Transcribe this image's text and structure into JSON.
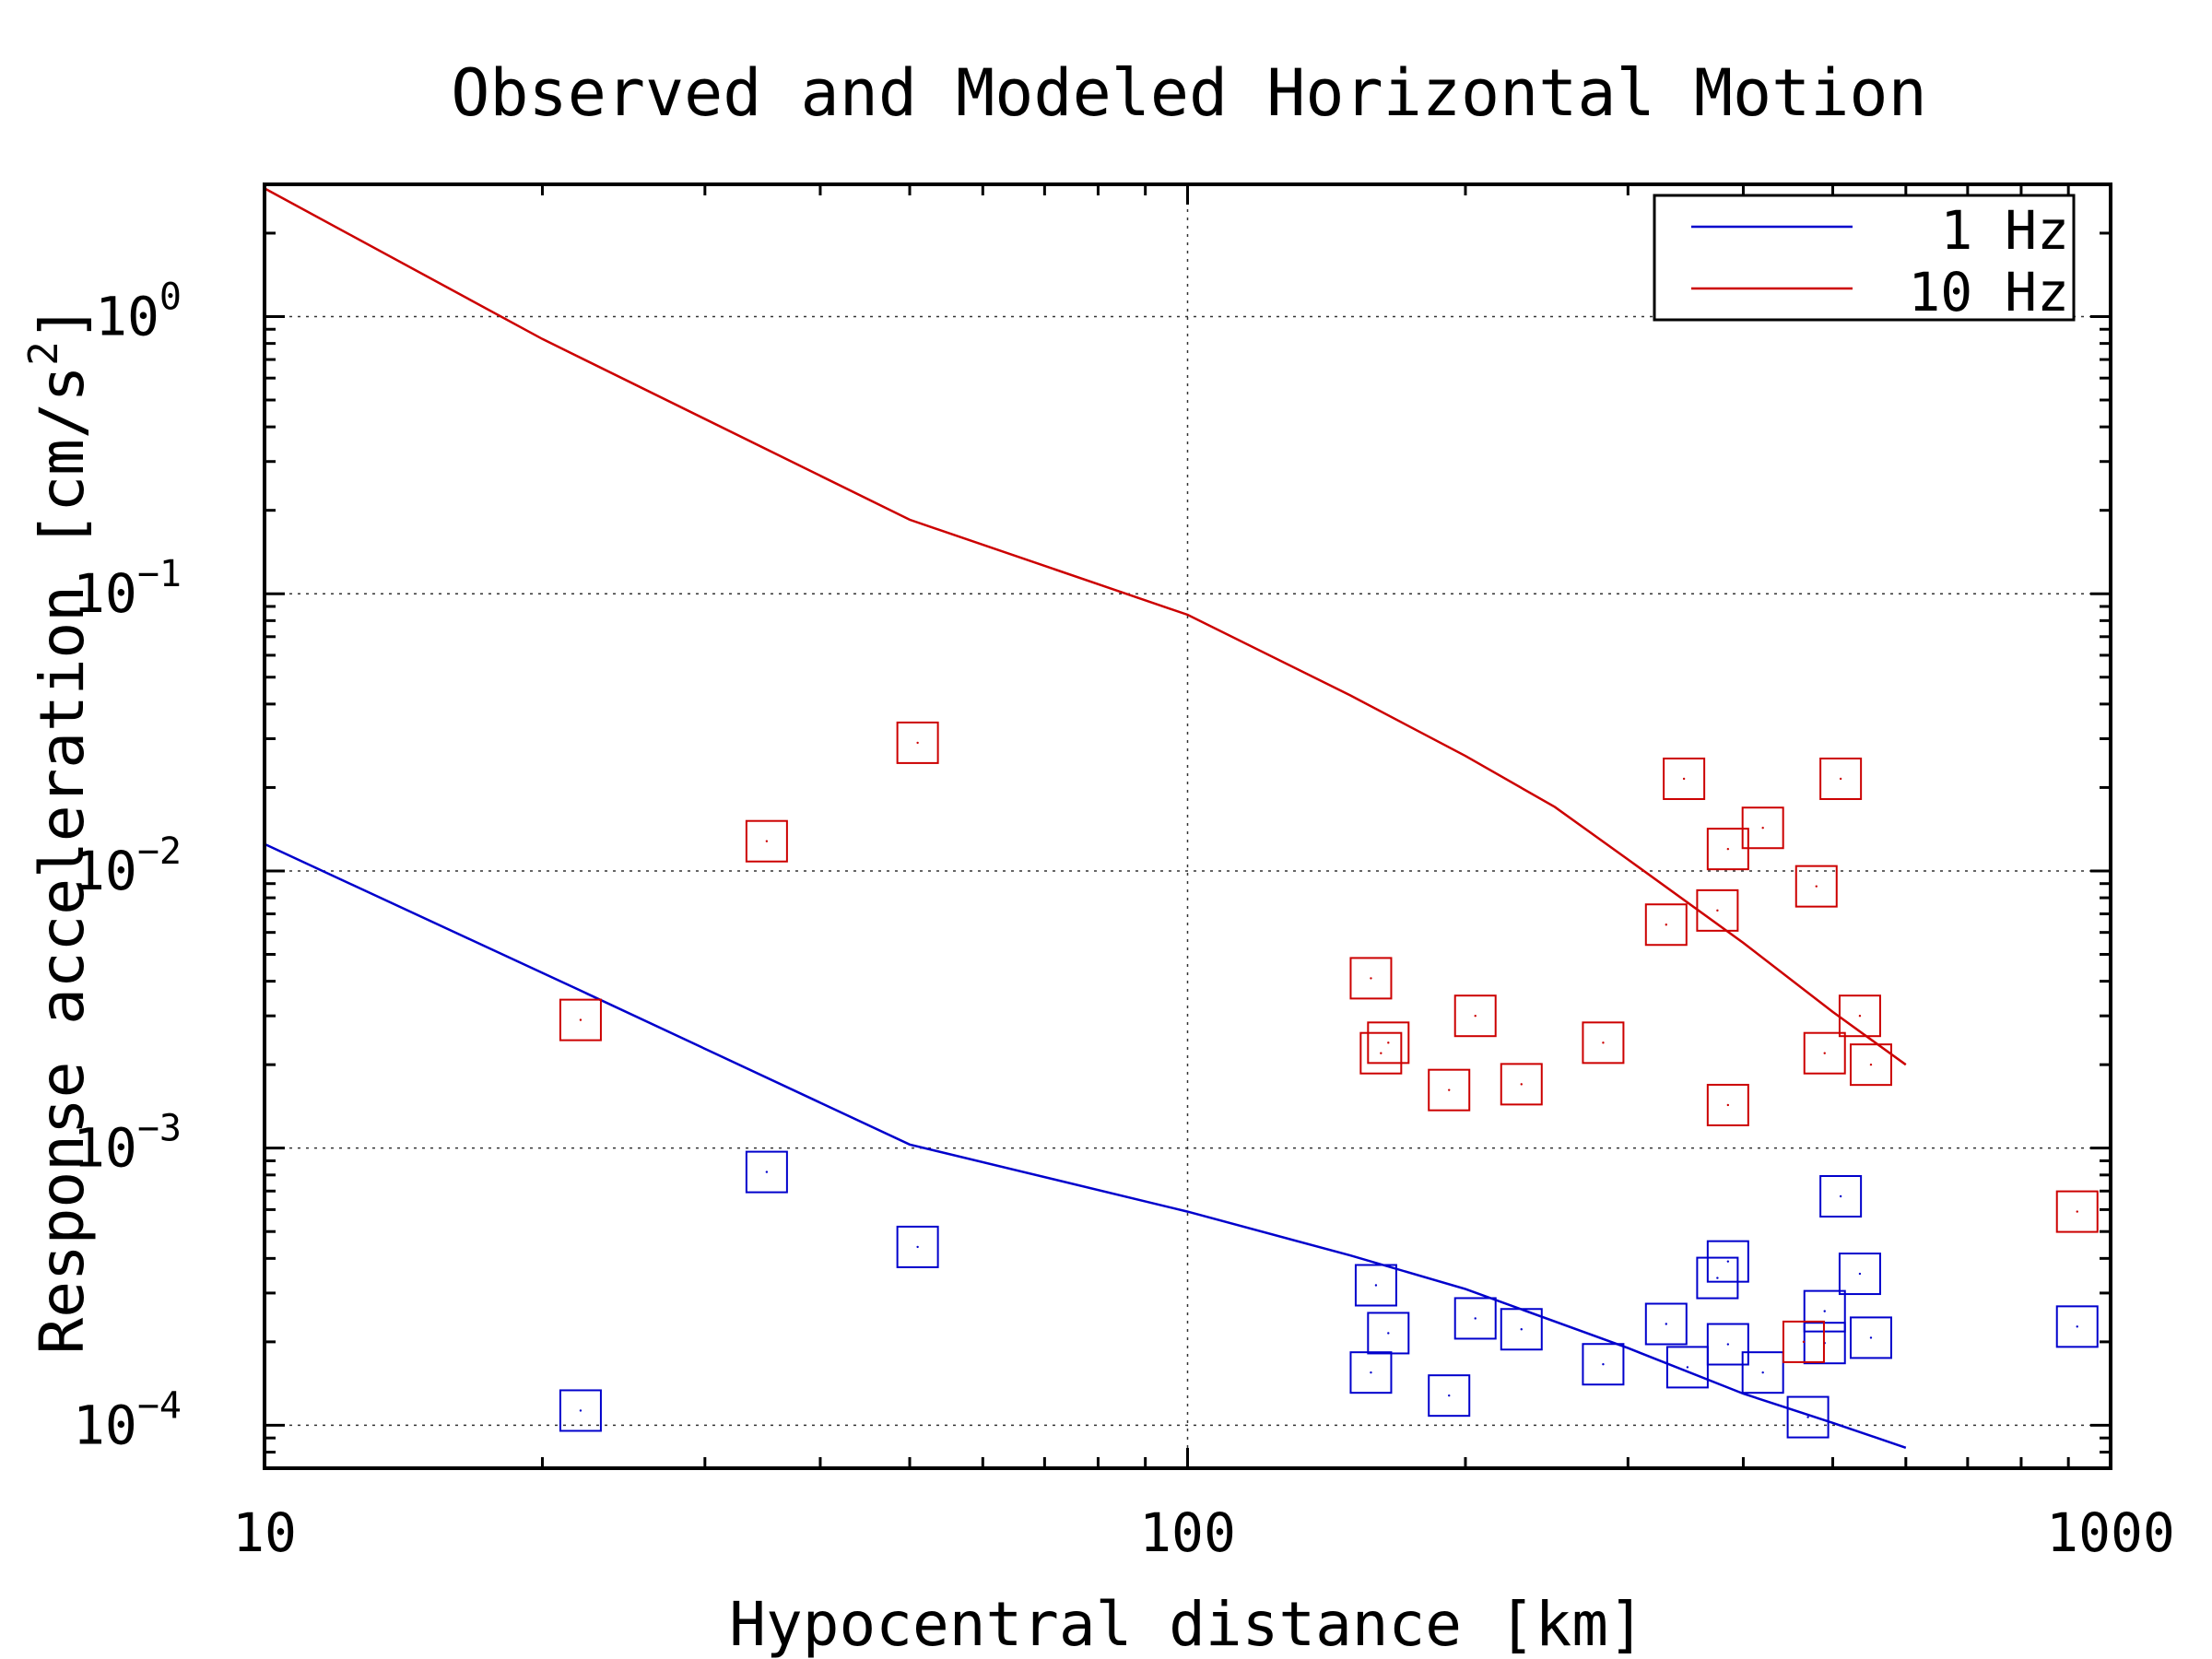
{
  "chart_data": {
    "type": "scatter",
    "title": "Observed and Modeled Horizontal Motion",
    "xlabel": "Hypocentral distance [km]",
    "ylabel": "Response acceleration [cm/s",
    "ylabel_sup": "2",
    "ylabel_end": "]",
    "x_scale": "log",
    "y_scale": "log",
    "xlim": [
      10,
      1000
    ],
    "ylim": [
      7e-05,
      3
    ],
    "grid": true,
    "legend_position": "top-right",
    "x_ticks": [
      {
        "value": 10,
        "label": "10"
      },
      {
        "value": 100,
        "label": "100"
      },
      {
        "value": 1000,
        "label": "1000"
      }
    ],
    "y_ticks": [
      {
        "value": 0.0001,
        "base": "10",
        "exp": "−4"
      },
      {
        "value": 0.001,
        "base": "10",
        "exp": "−3"
      },
      {
        "value": 0.01,
        "base": "10",
        "exp": "−2"
      },
      {
        "value": 0.1,
        "base": "10",
        "exp": "−1"
      },
      {
        "value": 1,
        "base": "10",
        "exp": "0"
      }
    ],
    "series": [
      {
        "name": "1 Hz",
        "color": "#0000cc",
        "line": [
          [
            10,
            0.0125
          ],
          [
            22,
            0.0037
          ],
          [
            50,
            0.00103
          ],
          [
            100,
            0.00059
          ],
          [
            150,
            0.00041
          ],
          [
            200,
            0.00031
          ],
          [
            300,
            0.00019
          ],
          [
            400,
            0.00013
          ],
          [
            500,
            0.000102
          ],
          [
            600,
            8.3e-05
          ]
        ],
        "points": [
          [
            22,
            0.000113
          ],
          [
            35,
            0.00082
          ],
          [
            51,
            0.00044
          ],
          [
            160,
            0.00032
          ],
          [
            165,
            0.000215
          ],
          [
            158,
            0.000155
          ],
          [
            192,
            0.000128
          ],
          [
            205,
            0.000243
          ],
          [
            230,
            0.000222
          ],
          [
            282,
            0.000166
          ],
          [
            330,
            0.000232
          ],
          [
            348,
            0.000162
          ],
          [
            375,
            0.00034
          ],
          [
            385,
            0.00039
          ],
          [
            385,
            0.000196
          ],
          [
            420,
            0.000155
          ],
          [
            470,
            0.000107
          ],
          [
            490,
            0.000198
          ],
          [
            490,
            0.000258
          ],
          [
            510,
            0.00067
          ],
          [
            535,
            0.000352
          ],
          [
            550,
            0.000207
          ],
          [
            920,
            0.000227
          ]
        ]
      },
      {
        "name": "10 Hz",
        "color": "#cc0000",
        "line": [
          [
            10,
            2.9
          ],
          [
            20,
            0.83
          ],
          [
            50,
            0.185
          ],
          [
            100,
            0.084
          ],
          [
            150,
            0.043
          ],
          [
            200,
            0.026
          ],
          [
            250,
            0.017
          ],
          [
            300,
            0.011
          ],
          [
            400,
            0.0055
          ],
          [
            500,
            0.0031
          ],
          [
            600,
            0.002
          ]
        ],
        "points": [
          [
            22,
            0.0029
          ],
          [
            35,
            0.0128
          ],
          [
            51,
            0.029
          ],
          [
            158,
            0.0041
          ],
          [
            162,
            0.0022
          ],
          [
            165,
            0.0024
          ],
          [
            192,
            0.00162
          ],
          [
            205,
            0.003
          ],
          [
            230,
            0.0017
          ],
          [
            282,
            0.0024
          ],
          [
            330,
            0.0064
          ],
          [
            345,
            0.0215
          ],
          [
            375,
            0.0072
          ],
          [
            385,
            0.012
          ],
          [
            385,
            0.00143
          ],
          [
            420,
            0.0143
          ],
          [
            465,
            0.0002
          ],
          [
            480,
            0.0088
          ],
          [
            490,
            0.0022
          ],
          [
            510,
            0.0215
          ],
          [
            535,
            0.003
          ],
          [
            550,
            0.002
          ],
          [
            920,
            0.00059
          ]
        ]
      }
    ]
  }
}
